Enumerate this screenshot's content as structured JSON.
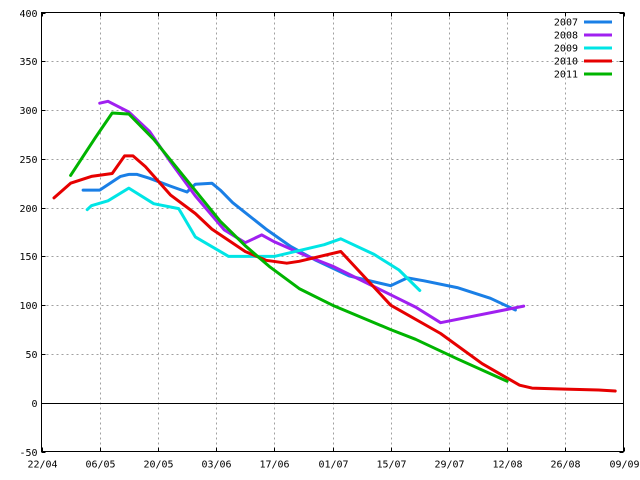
{
  "chart_data": {
    "type": "line",
    "title": "",
    "xlabel": "",
    "ylabel": "",
    "ylim": [
      -50,
      400
    ],
    "yticks": [
      -50,
      0,
      50,
      100,
      150,
      200,
      250,
      300,
      350,
      400
    ],
    "xlim_day": [
      0,
      140
    ],
    "xticks": [
      {
        "label": "22/04",
        "day": 0
      },
      {
        "label": "06/05",
        "day": 14
      },
      {
        "label": "20/05",
        "day": 28
      },
      {
        "label": "03/06",
        "day": 42
      },
      {
        "label": "17/06",
        "day": 56
      },
      {
        "label": "01/07",
        "day": 70
      },
      {
        "label": "15/07",
        "day": 84
      },
      {
        "label": "29/07",
        "day": 98
      },
      {
        "label": "12/08",
        "day": 112
      },
      {
        "label": "26/08",
        "day": 126
      },
      {
        "label": "09/09",
        "day": 140
      }
    ],
    "x_unit": "day from 22/04",
    "grid": true,
    "legend_position": "top-right",
    "series": [
      {
        "name": "2007",
        "color": "#1a7fe6",
        "points": [
          [
            10,
            218
          ],
          [
            14,
            218
          ],
          [
            19,
            232
          ],
          [
            21,
            234
          ],
          [
            23,
            234
          ],
          [
            26,
            230
          ],
          [
            31,
            222
          ],
          [
            35,
            216
          ],
          [
            37,
            224
          ],
          [
            41,
            225
          ],
          [
            43,
            218
          ],
          [
            46,
            205
          ],
          [
            54,
            178
          ],
          [
            60,
            160
          ],
          [
            66,
            146
          ],
          [
            74,
            130
          ],
          [
            84,
            120
          ],
          [
            88,
            128
          ],
          [
            92,
            125
          ],
          [
            100,
            118
          ],
          [
            108,
            107
          ],
          [
            114,
            95
          ]
        ]
      },
      {
        "name": "2008",
        "color": "#a020f0",
        "points": [
          [
            14,
            307
          ],
          [
            16,
            309
          ],
          [
            21,
            298
          ],
          [
            26,
            278
          ],
          [
            31,
            247
          ],
          [
            37,
            212
          ],
          [
            44,
            177
          ],
          [
            49,
            164
          ],
          [
            53,
            172
          ],
          [
            56,
            165
          ],
          [
            64,
            150
          ],
          [
            70,
            140
          ],
          [
            80,
            119
          ],
          [
            90,
            98
          ],
          [
            96,
            82
          ],
          [
            116,
            99
          ]
        ]
      },
      {
        "name": "2009",
        "color": "#00e5e5",
        "points": [
          [
            11,
            198
          ],
          [
            12,
            202
          ],
          [
            16,
            207
          ],
          [
            21,
            220
          ],
          [
            27,
            204
          ],
          [
            33,
            199
          ],
          [
            37,
            170
          ],
          [
            45,
            150
          ],
          [
            51,
            150
          ],
          [
            56,
            150
          ],
          [
            68,
            162
          ],
          [
            72,
            168
          ],
          [
            80,
            152
          ],
          [
            86,
            136
          ],
          [
            91,
            115
          ]
        ]
      },
      {
        "name": "2010",
        "color": "#e60000",
        "points": [
          [
            3,
            210
          ],
          [
            7,
            225
          ],
          [
            12,
            232
          ],
          [
            17,
            235
          ],
          [
            20,
            253
          ],
          [
            22,
            253
          ],
          [
            25,
            242
          ],
          [
            31,
            213
          ],
          [
            37,
            194
          ],
          [
            41,
            178
          ],
          [
            49,
            155
          ],
          [
            54,
            146
          ],
          [
            59,
            143
          ],
          [
            62,
            145
          ],
          [
            72,
            155
          ],
          [
            84,
            100
          ],
          [
            96,
            71
          ],
          [
            106,
            40
          ],
          [
            115,
            18
          ],
          [
            118,
            15
          ],
          [
            126,
            14
          ],
          [
            134,
            13
          ],
          [
            138,
            12
          ]
        ]
      },
      {
        "name": "2011",
        "color": "#00b400",
        "points": [
          [
            7,
            233
          ],
          [
            13,
            272
          ],
          [
            17,
            297
          ],
          [
            21,
            296
          ],
          [
            27,
            270
          ],
          [
            35,
            228
          ],
          [
            43,
            186
          ],
          [
            49,
            161
          ],
          [
            55,
            139
          ],
          [
            62,
            117
          ],
          [
            70,
            100
          ],
          [
            84,
            75
          ],
          [
            90,
            65
          ],
          [
            100,
            45
          ],
          [
            112,
            22
          ]
        ]
      }
    ]
  }
}
